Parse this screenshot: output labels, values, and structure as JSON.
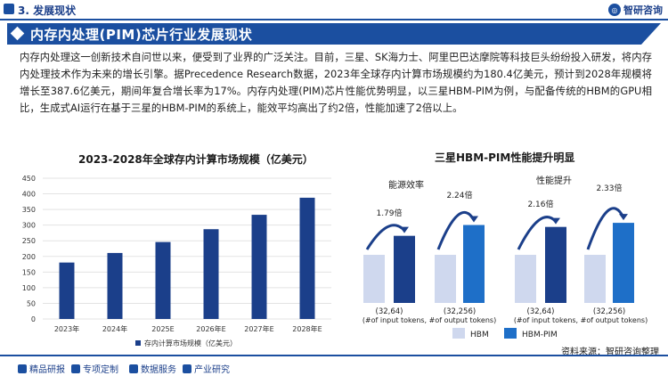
{
  "header": {
    "section_label": "3. 发展现状",
    "logo_text": "智研咨询",
    "banner_title": "内存内处理(PIM)芯片行业发展现状"
  },
  "paragraph": "内存内处理这一创新技术自问世以来，便受到了业界的广泛关注。目前，三星、SK海力士、阿里巴巴达摩院等科技巨头纷纷投入研发，将内存内处理技术作为未来的增长引擎。据Precedence Research数据，2023年全球存内计算市场规模约为180.4亿美元，预计到2028年规模将增长至387.6亿美元，期间年复合增长率为17%。内存内处理(PIM)芯片性能优势明显，以三星HBM-PIM为例，与配备传统的HBM的GPU相比，生成式AI运行在基于三星的HBM-PIM的系统上，能效平均高出了约2倍，性能加速了2倍以上。",
  "chart_data": [
    {
      "type": "bar",
      "title": "2023-2028年全球存内计算市场规模（亿美元）",
      "categories": [
        "2023年",
        "2024年",
        "2025E",
        "2026年E",
        "2027年E",
        "2028年E"
      ],
      "values": [
        180.4,
        211,
        246,
        287,
        333,
        387.6
      ],
      "ylim": [
        0,
        450
      ],
      "yticks": [
        0,
        50,
        100,
        150,
        200,
        250,
        300,
        350,
        400,
        450
      ],
      "legend": "存内计算市场规模（亿美元）",
      "legend_position": "bottom-center",
      "color": "#1b3f8a"
    },
    {
      "type": "bar",
      "title": "三星HBM-PIM性能提升明显",
      "groups": [
        {
          "label": "能源效率",
          "categories": [
            "(32,64)",
            "(32,256)"
          ],
          "hbm": [
            1,
            1
          ],
          "hbm_pim": [
            1.79,
            2.24
          ],
          "multipliers": [
            "1.79倍",
            "2.24倍"
          ]
        },
        {
          "label": "性能提升",
          "categories": [
            "(32,64)",
            "(32,256)"
          ],
          "hbm": [
            1,
            1
          ],
          "hbm_pim": [
            2.16,
            2.33
          ],
          "multipliers": [
            "2.16倍",
            "2.33倍"
          ]
        }
      ],
      "axis_note": "(#of input tokens, #of output tokens)",
      "legend": [
        "HBM",
        "HBM-PIM"
      ],
      "colors": {
        "hbm": "#cfd8ee",
        "hbm_pim": "#1b3f8a",
        "hbm_pim_light": "#1e6fc8"
      }
    }
  ],
  "footer": {
    "item1": "精品研报",
    "item2": "专项定制",
    "item3": "数据服务",
    "item4": "产业研究",
    "source": "资料来源：智研咨询整理"
  }
}
